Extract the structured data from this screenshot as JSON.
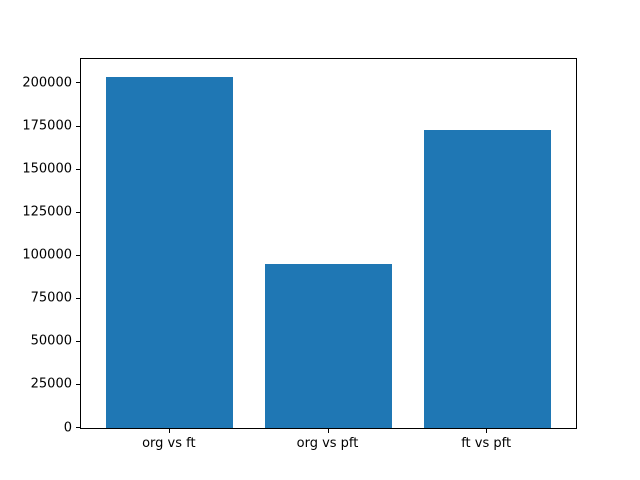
{
  "figure": {
    "background": "#ffffff"
  },
  "chart_data": {
    "type": "bar",
    "title": "",
    "xlabel": "",
    "ylabel": "",
    "categories": [
      "org vs ft",
      "org vs pft",
      "ft vs pft"
    ],
    "values": [
      204000,
      95000,
      173000
    ],
    "bar_color": "#1f77b4",
    "bar_width": 0.8,
    "xlim": [
      -0.56,
      2.56
    ],
    "ylim": [
      0,
      214200
    ],
    "yticks": [
      0,
      25000,
      50000,
      75000,
      100000,
      125000,
      150000,
      175000,
      200000
    ],
    "grid": false,
    "legend_position": "none"
  }
}
